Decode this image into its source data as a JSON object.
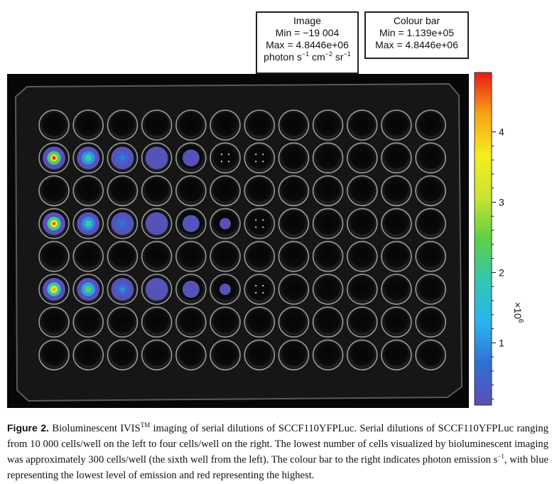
{
  "image_box": {
    "title": "Image",
    "min": "Min = −19 004",
    "max": "Max = 4.8446e+06",
    "unit_photon": "photon s",
    "unit_s_exp": "−1",
    "unit_cm": " cm",
    "unit_cm_exp": "−2",
    "unit_sr": " sr",
    "unit_sr_exp": "−1"
  },
  "colour_bar_box": {
    "title": "Colour bar",
    "min": "Min = 1.139e+05",
    "max": "Max = 4.8446e+06"
  },
  "colour_bar": {
    "ticks": [
      "1",
      "2",
      "3",
      "4"
    ],
    "tick_values": [
      1,
      2,
      3,
      4
    ],
    "range": [
      0.1139,
      4.8446
    ],
    "scale_label": "×10",
    "scale_exp": "6",
    "colors": [
      "#5a4fb5",
      "#2f6fd6",
      "#2ab4ee",
      "#33c7b0",
      "#5fcf46",
      "#c9e52f",
      "#f5ee1c",
      "#f6a316",
      "#e81a13"
    ]
  },
  "plate": {
    "rows": 8,
    "cols": 12,
    "signal_rows": [
      1,
      3,
      5
    ],
    "signal_levels": [
      [
        4.8,
        2.3,
        0.9,
        0.6,
        0.35,
        0,
        0
      ],
      [
        4.6,
        2.1,
        0.8,
        0.55,
        0.35,
        0.25,
        0
      ],
      [
        4.2,
        2.6,
        1.0,
        0.5,
        0.4,
        0.2,
        0
      ]
    ]
  },
  "caption": {
    "label": "Figure 2.",
    "t1": " Bioluminescent IVIS",
    "tm": "TM",
    "t2": " imaging of serial dilutions of SCCF110YFPLuc. Serial dilutions of SCCF110YFPLuc ranging from 10 000 cells/well on the left to four cells/well on the right. The lowest number of cells visualized by bioluminescent imaging was approximately 300 cells/well (the sixth well from the left). The colour bar to the right indicates photon emission s",
    "exp": "−1",
    "t3": ", with blue representing the lowest level of emission and red representing the highest."
  }
}
